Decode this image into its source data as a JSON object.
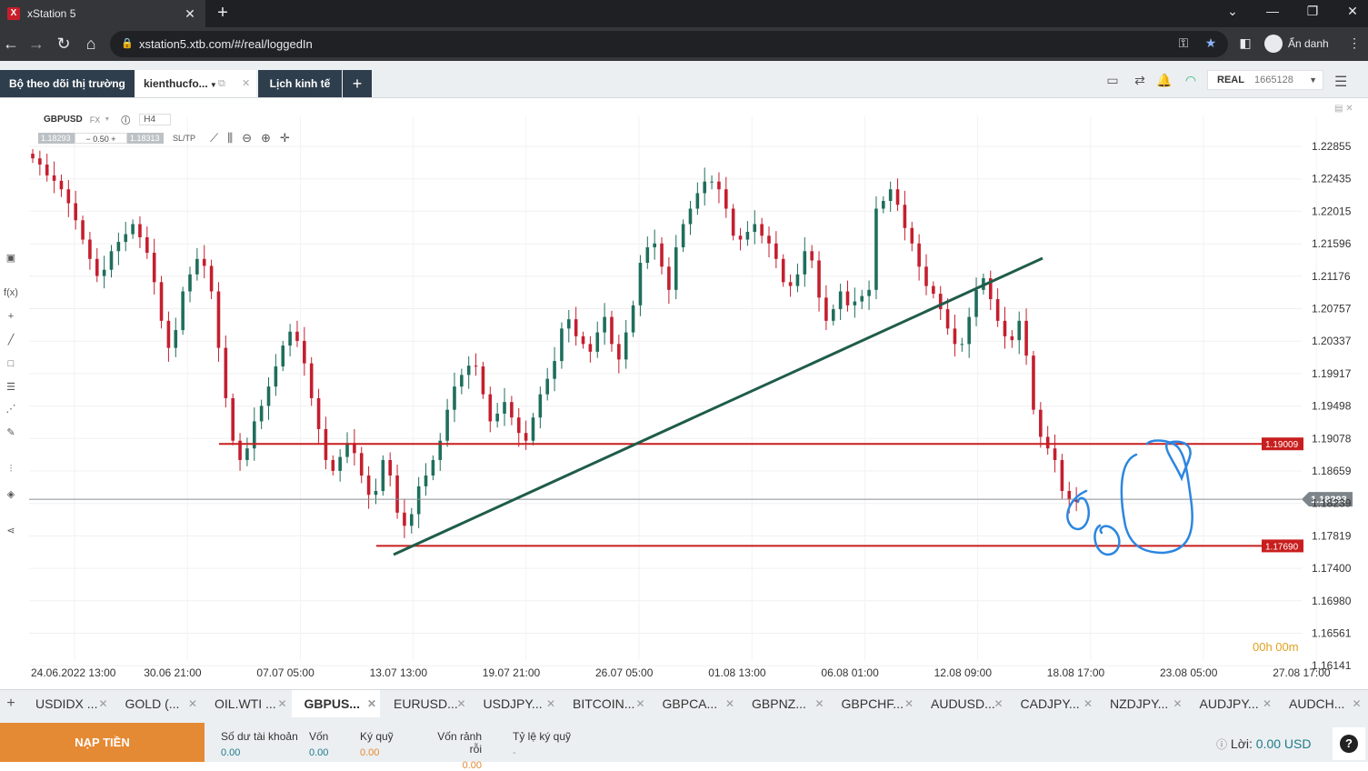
{
  "browser": {
    "tab_title": "xStation 5",
    "url": "xstation5.xtb.com/#/real/loggedIn",
    "profile_label": "Ẩn danh"
  },
  "app": {
    "tabs": {
      "market_watch": "Bộ theo dõi thị trường",
      "kienthuc": "kienthucfo...",
      "calendar": "Lịch kinh tế",
      "plus": "+"
    },
    "account_type": "REAL",
    "account_number": "1665128"
  },
  "instrument": {
    "symbol": "GBPUSD",
    "market": "FX",
    "timeframe": "H4",
    "sell_price": "1.18293",
    "volume": "0.50",
    "buy_price": "1.18313",
    "sltp_label": "SL/TP"
  },
  "chart_data": {
    "type": "candlestick",
    "symbol": "GBPUSD",
    "price_axis": [
      "1.22855",
      "1.22435",
      "1.22015",
      "1.21596",
      "1.21176",
      "1.20757",
      "1.20337",
      "1.19917",
      "1.19498",
      "1.19078",
      "1.18659",
      "1.18239",
      "1.17819",
      "1.17400",
      "1.16980",
      "1.16561",
      "1.16141"
    ],
    "date_axis": [
      "24.06.2022 13:00",
      "30.06 21:00",
      "07.07 05:00",
      "13.07 13:00",
      "19.07 21:00",
      "26.07 05:00",
      "01.08 13:00",
      "06.08 01:00",
      "12.08 09:00",
      "18.08 17:00",
      "23.08 05:00",
      "27.08 17:00"
    ],
    "current_price_label": "1.18293",
    "horizontal_levels": [
      {
        "label": "1.19009",
        "color": "#c81e1e"
      },
      {
        "label": "1.17690",
        "color": "#c81e1e"
      }
    ],
    "trendline_color": "#1f5c4a",
    "bull_color": "#1f6e5c",
    "bear_color": "#c41f2f",
    "annotation_color": "#2b86e0",
    "close_series": [
      1.227,
      1.2262,
      1.2248,
      1.2241,
      1.223,
      1.2212,
      1.219,
      1.2165,
      1.214,
      1.2118,
      1.2126,
      1.215,
      1.2162,
      1.2172,
      1.2185,
      1.2168,
      1.2148,
      1.211,
      1.206,
      1.2025,
      1.2048,
      1.2098,
      1.212,
      1.214,
      1.2131,
      1.2098,
      1.2025,
      1.196,
      1.1905,
      1.188,
      1.1895,
      1.193,
      1.195,
      1.1975,
      1.2001,
      1.2028,
      1.2046,
      1.2034,
      1.2005,
      1.196,
      1.192,
      1.188,
      1.1866,
      1.1884,
      1.1902,
      1.1889,
      1.186,
      1.1835,
      1.184,
      1.188,
      1.186,
      1.1812,
      1.1795,
      1.181,
      1.1846,
      1.186,
      1.188,
      1.1905,
      1.1945,
      1.1975,
      1.199,
      1.2002,
      1.2001,
      1.1965,
      1.193,
      1.194,
      1.1955,
      1.1935,
      1.1915,
      1.1905,
      1.1935,
      1.1965,
      1.1985,
      1.2008,
      1.205,
      1.2062,
      1.204,
      1.203,
      1.202,
      1.2045,
      1.2065,
      1.203,
      1.201,
      1.2045,
      1.208,
      1.2135,
      1.2155,
      1.216,
      1.213,
      1.21,
      1.2155,
      1.2185,
      1.2205,
      1.2225,
      1.224,
      1.224,
      1.223,
      1.2205,
      1.217,
      1.2165,
      1.2175,
      1.2185,
      1.217,
      1.216,
      1.214,
      1.211,
      1.2105,
      1.212,
      1.215,
      1.2138,
      1.209,
      1.206,
      1.2075,
      1.2098,
      1.208,
      1.2085,
      1.2092,
      1.21,
      1.2205,
      1.2215,
      1.223,
      1.221,
      1.218,
      1.216,
      1.213,
      1.2105,
      1.2095,
      1.2075,
      1.205,
      1.203,
      1.203,
      1.2065,
      1.21,
      1.2115,
      1.2088,
      1.206,
      1.204,
      1.2035,
      1.206,
      1.2015,
      1.1945,
      1.191,
      1.1895,
      1.188,
      1.184,
      1.1829,
      1.1826
    ]
  },
  "timer": "00h 00m",
  "instrument_tabs": [
    "USDIDX ...",
    "GOLD (...",
    "OIL.WTI ...",
    "GBPUS...",
    "EURUSD...",
    "USDJPY...",
    "BITCOIN...",
    "GBPCA...",
    "GBPNZ...",
    "GBPCHF...",
    "AUDUSD...",
    "CADJPY...",
    "NZDJPY...",
    "AUDJPY...",
    "AUDCH..."
  ],
  "footer": {
    "deposit_label": "NẠP TIỀN",
    "balance_label": "Số dư tài khoản",
    "balance_value": "0.00",
    "equity_label": "Vốn",
    "equity_value": "0.00",
    "margin_label": "Ký quỹ",
    "margin_value": "0.00",
    "free_margin_label": "Vốn rảnh rỗi",
    "free_margin_value": "0.00",
    "margin_level_label": "Tỷ lệ ký quỹ",
    "margin_level_value": "-",
    "profit_label": "Lời:",
    "profit_value": "0.00 USD"
  }
}
